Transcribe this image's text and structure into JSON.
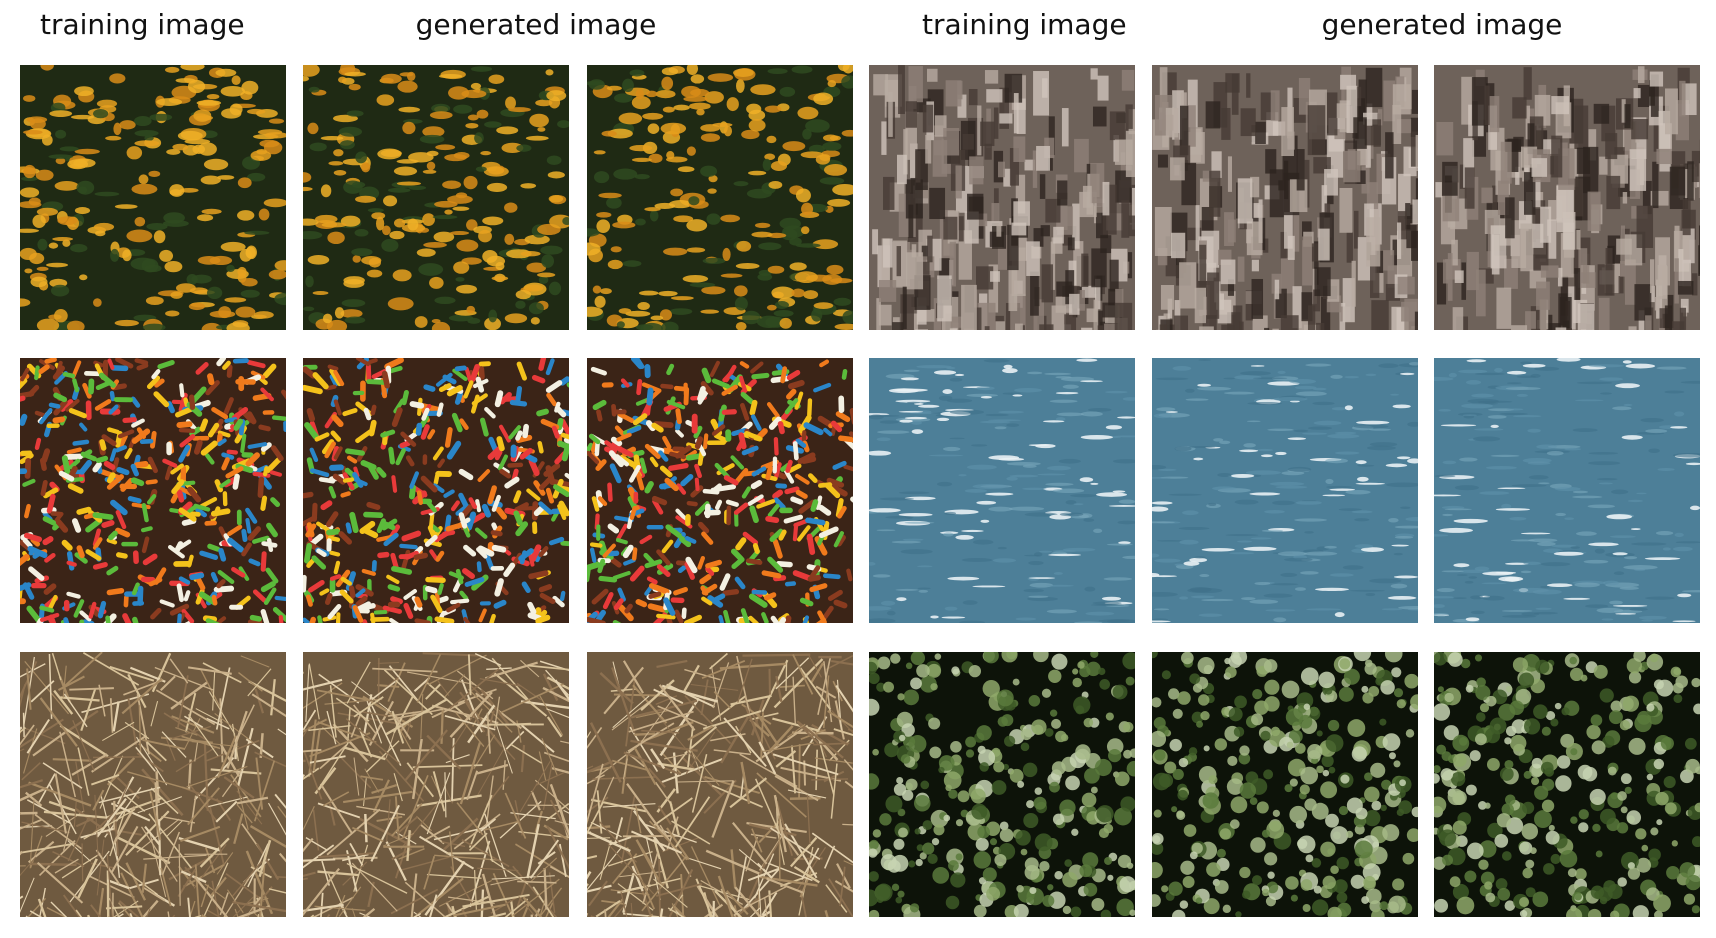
{
  "headers": [
    {
      "text": "training image"
    },
    {
      "text": "generated image"
    },
    {
      "text": "training image"
    },
    {
      "text": "generated image"
    }
  ],
  "groups": [
    {
      "label": "training image",
      "images": [
        "flowers",
        "sprinkles",
        "straw"
      ]
    },
    {
      "label": "generated image",
      "images": [
        "flowers",
        "sprinkles",
        "straw"
      ]
    },
    {
      "label": "generated image",
      "images": [
        "flowers",
        "sprinkles",
        "straw"
      ]
    },
    {
      "label": "training image",
      "images": [
        "bark",
        "water",
        "leaves"
      ]
    },
    {
      "label": "generated image",
      "images": [
        "bark",
        "water",
        "leaves"
      ]
    },
    {
      "label": "generated image",
      "images": [
        "bark",
        "water",
        "leaves"
      ]
    }
  ],
  "palettes": {
    "flowers": {
      "bg": "#1f2a14",
      "colors": [
        "#e8a11e",
        "#f0b027",
        "#d98c17",
        "#2f4a20"
      ]
    },
    "sprinkles": {
      "bg": "#3b2417",
      "colors": [
        "#e83a3a",
        "#f4c21b",
        "#2a86c9",
        "#5bbb3b",
        "#f07a1c",
        "#f3f0e2",
        "#8a3b1f"
      ]
    },
    "straw": {
      "bg": "#6f5a40",
      "colors": [
        "#c9b08a",
        "#e4d2b0",
        "#a68a63",
        "#d8c39a",
        "#8c7050"
      ]
    },
    "bark": {
      "bg": "#6e625a",
      "colors": [
        "#b8aba1",
        "#cfc4bb",
        "#463b35",
        "#8e8178",
        "#2d241f"
      ]
    },
    "water": {
      "bg": "#4d7f98",
      "colors": [
        "#5f91aa",
        "#3f6f89",
        "#e9f1f4",
        "#7aa6bb"
      ]
    },
    "leaves": {
      "bg": "#0d1309",
      "colors": [
        "#5b7a3c",
        "#8fa86a",
        "#c7d3b2",
        "#3e5a27",
        "#a8bb8a"
      ]
    }
  }
}
